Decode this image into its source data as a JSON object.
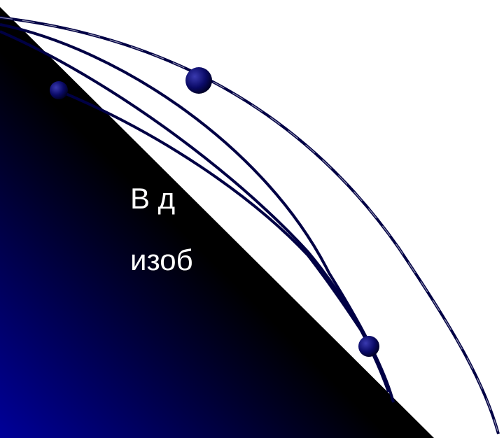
{
  "slide": {
    "text_lines": [
      "",
      "",
      "",
      "В д",
      "изоб"
    ],
    "colors": {
      "gradient_start": "#000099",
      "gradient_end": "#000000",
      "curve": "#000044",
      "bullet": "#0a0a66",
      "text": "#ffffff",
      "background": "#ffffff"
    }
  }
}
